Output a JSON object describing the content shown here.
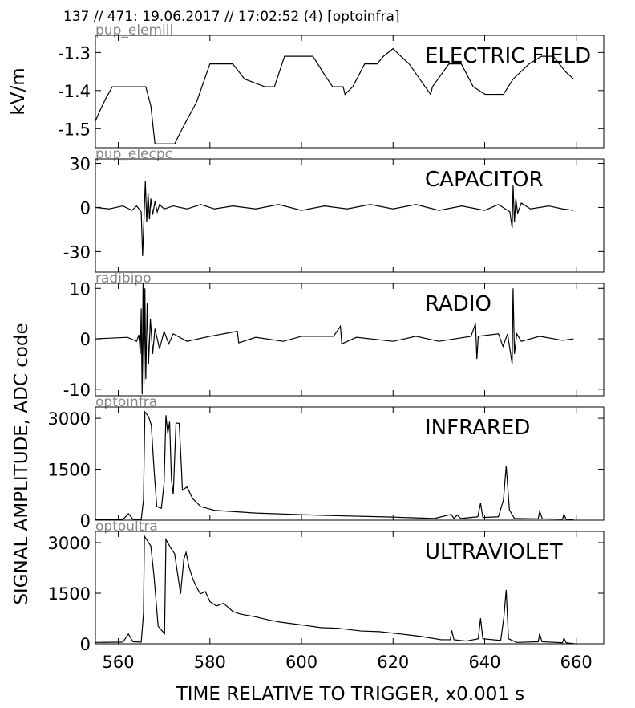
{
  "header": "137 // 471:   19.06.2017 // 17:02:52 (4)  [optoinfra]",
  "xlabel": "TIME RELATIVE TO TRIGGER,   x0.001 s",
  "ylabel": "SIGNAL AMPLITUDE,  ADC code",
  "chart_data": [
    {
      "type": "line",
      "name": "pup_elemill",
      "label": "ELECTRIC FIELD",
      "ylabel": "kV/m",
      "color": "#000000",
      "xlim": [
        555,
        666
      ],
      "xticks": [
        560,
        580,
        600,
        620,
        640,
        660
      ],
      "ylim": [
        -1.55,
        -1.255
      ],
      "yticks": [
        -1.3,
        -1.4,
        -1.5
      ],
      "x": [
        555,
        556.1,
        557.3,
        558.7,
        566,
        567.1,
        568,
        572.3,
        574.4,
        577.1,
        580,
        585,
        587.6,
        592,
        594.1,
        596.3,
        602.5,
        605.1,
        606.8,
        609.1,
        609.5,
        611.2,
        613.8,
        616.5,
        617.9,
        620,
        621.7,
        623.5,
        627,
        628.2,
        628.6,
        632.2,
        634.9,
        637.5,
        640.1,
        644.1,
        646.2,
        649.7,
        652.4,
        655,
        657.6,
        659.4
      ],
      "values": [
        -1.48,
        -1.45,
        -1.42,
        -1.39,
        -1.39,
        -1.44,
        -1.54,
        -1.54,
        -1.49,
        -1.43,
        -1.33,
        -1.33,
        -1.37,
        -1.39,
        -1.39,
        -1.31,
        -1.31,
        -1.36,
        -1.39,
        -1.39,
        -1.41,
        -1.39,
        -1.33,
        -1.33,
        -1.31,
        -1.29,
        -1.31,
        -1.33,
        -1.39,
        -1.41,
        -1.39,
        -1.33,
        -1.33,
        -1.39,
        -1.41,
        -1.41,
        -1.37,
        -1.33,
        -1.31,
        -1.31,
        -1.35,
        -1.37
      ]
    },
    {
      "type": "line",
      "name": "pup_elecpc",
      "label": "CAPACITOR",
      "color": "#000000",
      "xlim": [
        555,
        666
      ],
      "xticks": [
        560,
        580,
        600,
        620,
        640,
        660
      ],
      "ylim": [
        -44,
        33
      ],
      "yticks": [
        30,
        0,
        -30
      ],
      "x": [
        555,
        558,
        561,
        563,
        564,
        565,
        565.3,
        565.6,
        565.9,
        566.2,
        566.5,
        566.8,
        567.1,
        567.5,
        568,
        568.5,
        569,
        570,
        572,
        575,
        578,
        581,
        585,
        590,
        595,
        600,
        605,
        610,
        615,
        620,
        625,
        630,
        635,
        640,
        643,
        645.5,
        646.0,
        646.2,
        646.5,
        646.8,
        647.2,
        648,
        650,
        654,
        657,
        659.4
      ],
      "values": [
        0,
        -1,
        1,
        -2,
        1,
        -3,
        -33,
        -8,
        18,
        -10,
        10,
        -8,
        6,
        -5,
        4,
        -3,
        2,
        -1,
        1,
        -1,
        2,
        -1,
        1,
        -1,
        2,
        -2,
        1,
        -1,
        2,
        -1,
        2,
        -2,
        1,
        -2,
        2,
        -3,
        -14,
        15,
        -10,
        6,
        -4,
        3,
        -1,
        1,
        -1,
        -2
      ]
    },
    {
      "type": "line",
      "name": "radibipo",
      "label": "RADIO",
      "color": "#000000",
      "xlim": [
        555,
        666
      ],
      "xticks": [
        560,
        580,
        600,
        620,
        640,
        660
      ],
      "ylim": [
        -11.3,
        11
      ],
      "yticks": [
        10,
        0,
        -10
      ],
      "x": [
        555,
        562,
        564,
        564.5,
        564.8,
        565.0,
        565.2,
        565.4,
        565.6,
        565.8,
        566.0,
        566.3,
        566.6,
        567,
        567.5,
        568,
        569,
        570,
        571,
        572,
        575,
        580,
        586,
        586.3,
        590,
        596,
        600,
        607,
        608.5,
        608.8,
        612,
        620,
        625,
        630,
        637,
        638.0,
        638.3,
        638.6,
        643,
        644,
        645,
        646.0,
        646.2,
        646.5,
        647,
        648,
        652,
        657,
        659.4
      ],
      "values": [
        0,
        0.3,
        -0.5,
        0.8,
        -3,
        6,
        -11,
        11,
        -9,
        10,
        -8,
        7,
        -5,
        4,
        -3,
        2,
        -2,
        1.5,
        -1,
        1,
        -0.5,
        0.5,
        1.5,
        -0.8,
        0.3,
        -0.5,
        0.5,
        0.5,
        2.5,
        -1,
        0.3,
        -0.5,
        0.5,
        -0.5,
        0.5,
        3,
        -4,
        0.5,
        1,
        -1.5,
        1,
        -5,
        10,
        -3,
        1,
        -0.5,
        0.5,
        -0.3,
        0
      ]
    },
    {
      "type": "line",
      "name": "optoinfra",
      "label": "INFRARED",
      "color": "#000000",
      "xlim": [
        555,
        666
      ],
      "xticks": [
        560,
        580,
        600,
        620,
        640,
        660
      ],
      "ylim": [
        0,
        3333
      ],
      "yticks": [
        3000,
        1500,
        0
      ],
      "x": [
        555,
        561,
        562.2,
        563.2,
        565,
        565.5,
        565.8,
        566.6,
        567.2,
        567.8,
        568.4,
        569.4,
        570,
        570.4,
        570.8,
        571.2,
        571.6,
        572,
        572.6,
        573.3,
        573.8,
        574,
        575,
        576.2,
        578,
        581,
        590,
        605,
        619,
        629,
        632.7,
        633.3,
        634,
        634.8,
        638.5,
        639.1,
        639.6,
        643,
        644.1,
        644.7,
        645.4,
        646.5,
        651.7,
        652,
        652.6,
        657,
        657.3,
        657.8,
        659.4
      ],
      "values": [
        10,
        20,
        190,
        30,
        20,
        600,
        3190,
        3050,
        2800,
        1500,
        400,
        350,
        1100,
        3090,
        2550,
        2900,
        1200,
        760,
        2860,
        2850,
        1500,
        880,
        980,
        640,
        400,
        290,
        210,
        140,
        95,
        50,
        170,
        50,
        150,
        50,
        100,
        500,
        80,
        100,
        600,
        1600,
        300,
        50,
        40,
        260,
        40,
        30,
        170,
        30,
        20
      ]
    },
    {
      "type": "line",
      "name": "optoultra",
      "label": "ULTRAVIOLET",
      "color": "#000000",
      "xlim": [
        555,
        666
      ],
      "xticks": [
        560,
        580,
        600,
        620,
        640,
        660
      ],
      "ylim": [
        0,
        3333
      ],
      "yticks": [
        3000,
        1500,
        0
      ],
      "x": [
        555,
        561,
        562.2,
        563.2,
        565,
        565.5,
        565.7,
        567.1,
        567.8,
        568.7,
        570.1,
        570.4,
        571.5,
        572.3,
        573.6,
        574.3,
        574.8,
        575.4,
        576.2,
        577,
        577.9,
        579,
        580,
        581.4,
        583,
        585,
        586.7,
        590,
        593,
        595.5,
        600,
        604.2,
        608,
        613,
        617,
        621.7,
        626,
        630.5,
        632.5,
        632.8,
        633.3,
        636,
        638.6,
        639.1,
        639.6,
        643.5,
        644.2,
        644.7,
        645.2,
        647,
        651.7,
        652,
        652.5,
        657,
        657.3,
        657.8,
        659.7
      ],
      "values": [
        40,
        50,
        290,
        60,
        50,
        900,
        3190,
        2900,
        2000,
        520,
        300,
        3090,
        2830,
        2670,
        1480,
        2500,
        2710,
        2300,
        1950,
        1700,
        1480,
        1550,
        1250,
        1120,
        1200,
        960,
        880,
        800,
        700,
        640,
        560,
        480,
        460,
        380,
        360,
        290,
        220,
        120,
        120,
        400,
        120,
        80,
        150,
        760,
        150,
        100,
        800,
        1600,
        150,
        40,
        60,
        300,
        60,
        30,
        170,
        30,
        0
      ]
    }
  ]
}
